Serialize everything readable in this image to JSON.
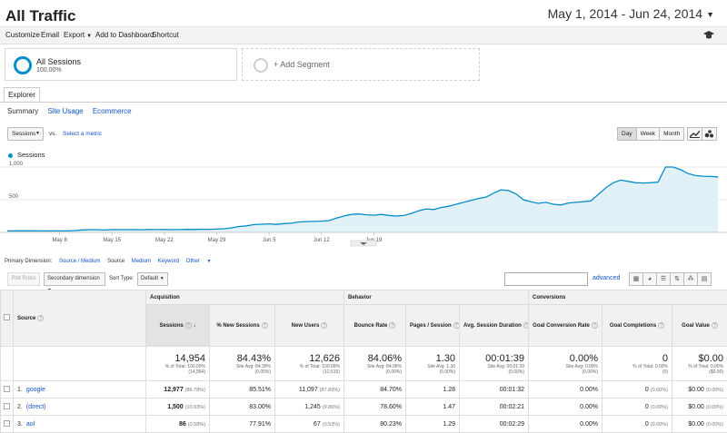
{
  "header": {
    "title": "All Traffic",
    "date_range": "May 1, 2014 - Jun 24, 2014"
  },
  "toolbar": {
    "customize": "Customize",
    "email": "Email",
    "export": "Export",
    "add_dashboard": "Add to Dashboard",
    "shortcut": "Shortcut"
  },
  "segments": {
    "active_name": "All Sessions",
    "active_pct": "100.00%",
    "add_label": "+ Add Segment"
  },
  "tabs": {
    "explorer": "Explorer",
    "sub": [
      "Summary",
      "Site Usage",
      "Ecommerce"
    ]
  },
  "chart_controls": {
    "metric": "Sessions",
    "vs": "vs.",
    "select_metric": "Select a metric",
    "granularity": [
      "Day",
      "Week",
      "Month"
    ],
    "active_granularity": "Day"
  },
  "chart_data": {
    "type": "area",
    "series": [
      {
        "name": "Sessions",
        "values": [
          22,
          23,
          23,
          24,
          23,
          22,
          23,
          22,
          24,
          28,
          38,
          42,
          41,
          36,
          43,
          42,
          41,
          43,
          40,
          44,
          43,
          45,
          42,
          43,
          46,
          44,
          48,
          47,
          52,
          56,
          70,
          90,
          100,
          120,
          125,
          130,
          122,
          135,
          140,
          160,
          165,
          168,
          172,
          180,
          220,
          250,
          275,
          282,
          270,
          262,
          275,
          260,
          250,
          258,
          290,
          330,
          360,
          350,
          380,
          400,
          430,
          460,
          490,
          520,
          540,
          600,
          650,
          640,
          590,
          500,
          470,
          445,
          460,
          430,
          420,
          450,
          460,
          470,
          480,
          580,
          680,
          760,
          800,
          780,
          760,
          755,
          760,
          770,
          1000,
          1000,
          960,
          900,
          870,
          860,
          855,
          850
        ]
      }
    ],
    "x_tick_labels": [
      "May 8",
      "May 15",
      "May 22",
      "May 29",
      "Jun 5",
      "Jun 12",
      "Jun 19"
    ],
    "y_tick_labels": [
      "1,000",
      "500"
    ],
    "ylim": [
      0,
      1000
    ],
    "legend": "Sessions"
  },
  "dimension_row": {
    "label": "Primary Dimension:",
    "options": [
      "Source / Medium",
      "Source",
      "Medium",
      "Keyword",
      "Other"
    ],
    "active": "Source"
  },
  "table_controls": {
    "plot_rows": "Plot Rows",
    "secondary_dimension": "Secondary dimension",
    "sort_type_label": "Sort Type:",
    "sort_type": "Default",
    "advanced": "advanced"
  },
  "table": {
    "groups": {
      "acquisition": "Acquisition",
      "behavior": "Behavior",
      "conversions": "Conversions"
    },
    "headers": {
      "source": "Source",
      "sessions": "Sessions",
      "pct_new_sessions": "% New Sessions",
      "new_users": "New Users",
      "bounce_rate": "Bounce Rate",
      "pages_session": "Pages / Session",
      "avg_duration": "Avg. Session Duration",
      "goal_conv_rate": "Goal Conversion Rate",
      "goal_completions": "Goal Completions",
      "goal_value": "Goal Value"
    },
    "totals": {
      "sessions": {
        "value": "14,954",
        "sub1": "% of Total: 100.00%",
        "sub2": "(14,954)"
      },
      "pct_new": {
        "value": "84.43%",
        "sub1": "Site Avg: 84.39%",
        "sub2": "(0.05%)"
      },
      "new_users": {
        "value": "12,626",
        "sub1": "% of Total: 100.09%",
        "sub2": "(12,615)"
      },
      "bounce": {
        "value": "84.06%",
        "sub1": "Site Avg: 84.06%",
        "sub2": "(0.00%)"
      },
      "pages": {
        "value": "1.30",
        "sub1": "Site Avg: 1.30",
        "sub2": "(0.00%)"
      },
      "duration": {
        "value": "00:01:39",
        "sub1": "Site Avg: 00:01:39",
        "sub2": "(0.00%)"
      },
      "conv_rate": {
        "value": "0.00%",
        "sub1": "Site Avg: 0.00%",
        "sub2": "(0.00%)"
      },
      "completions": {
        "value": "0",
        "sub1": "% of Total: 0.00%",
        "sub2": "(0)"
      },
      "goal_value": {
        "value": "$0.00",
        "sub1": "% of Total: 0.00%",
        "sub2": "($0.00)"
      }
    },
    "rows": [
      {
        "num": "1.",
        "source": "google",
        "sessions": "12,977",
        "sessions_pct": "(86.78%)",
        "pct_new": "85.51%",
        "new_users": "11,097",
        "new_users_pct": "(87.89%)",
        "bounce": "84.70%",
        "pages": "1.28",
        "duration": "00:01:32",
        "conv_rate": "0.00%",
        "completions": "0",
        "completions_pct": "(0.00%)",
        "goal_value": "$0.00",
        "goal_value_pct": "(0.00%)"
      },
      {
        "num": "2.",
        "source": "(direct)",
        "sessions": "1,500",
        "sessions_pct": "(10.03%)",
        "pct_new": "83.00%",
        "new_users": "1,245",
        "new_users_pct": "(9.86%)",
        "bounce": "78.60%",
        "pages": "1.47",
        "duration": "00:02:21",
        "conv_rate": "0.00%",
        "completions": "0",
        "completions_pct": "(0.00%)",
        "goal_value": "$0.00",
        "goal_value_pct": "(0.00%)"
      },
      {
        "num": "3.",
        "source": "aol",
        "sessions": "86",
        "sessions_pct": "(0.58%)",
        "pct_new": "77.91%",
        "new_users": "67",
        "new_users_pct": "(0.53%)",
        "bounce": "80.23%",
        "pages": "1.29",
        "duration": "00:02:29",
        "conv_rate": "0.00%",
        "completions": "0",
        "completions_pct": "(0.00%)",
        "goal_value": "$0.00",
        "goal_value_pct": "(0.00%)"
      }
    ]
  },
  "colors": {
    "accent": "#058dc7",
    "link": "#1155cc",
    "area_fill": "#e1f1f8"
  }
}
